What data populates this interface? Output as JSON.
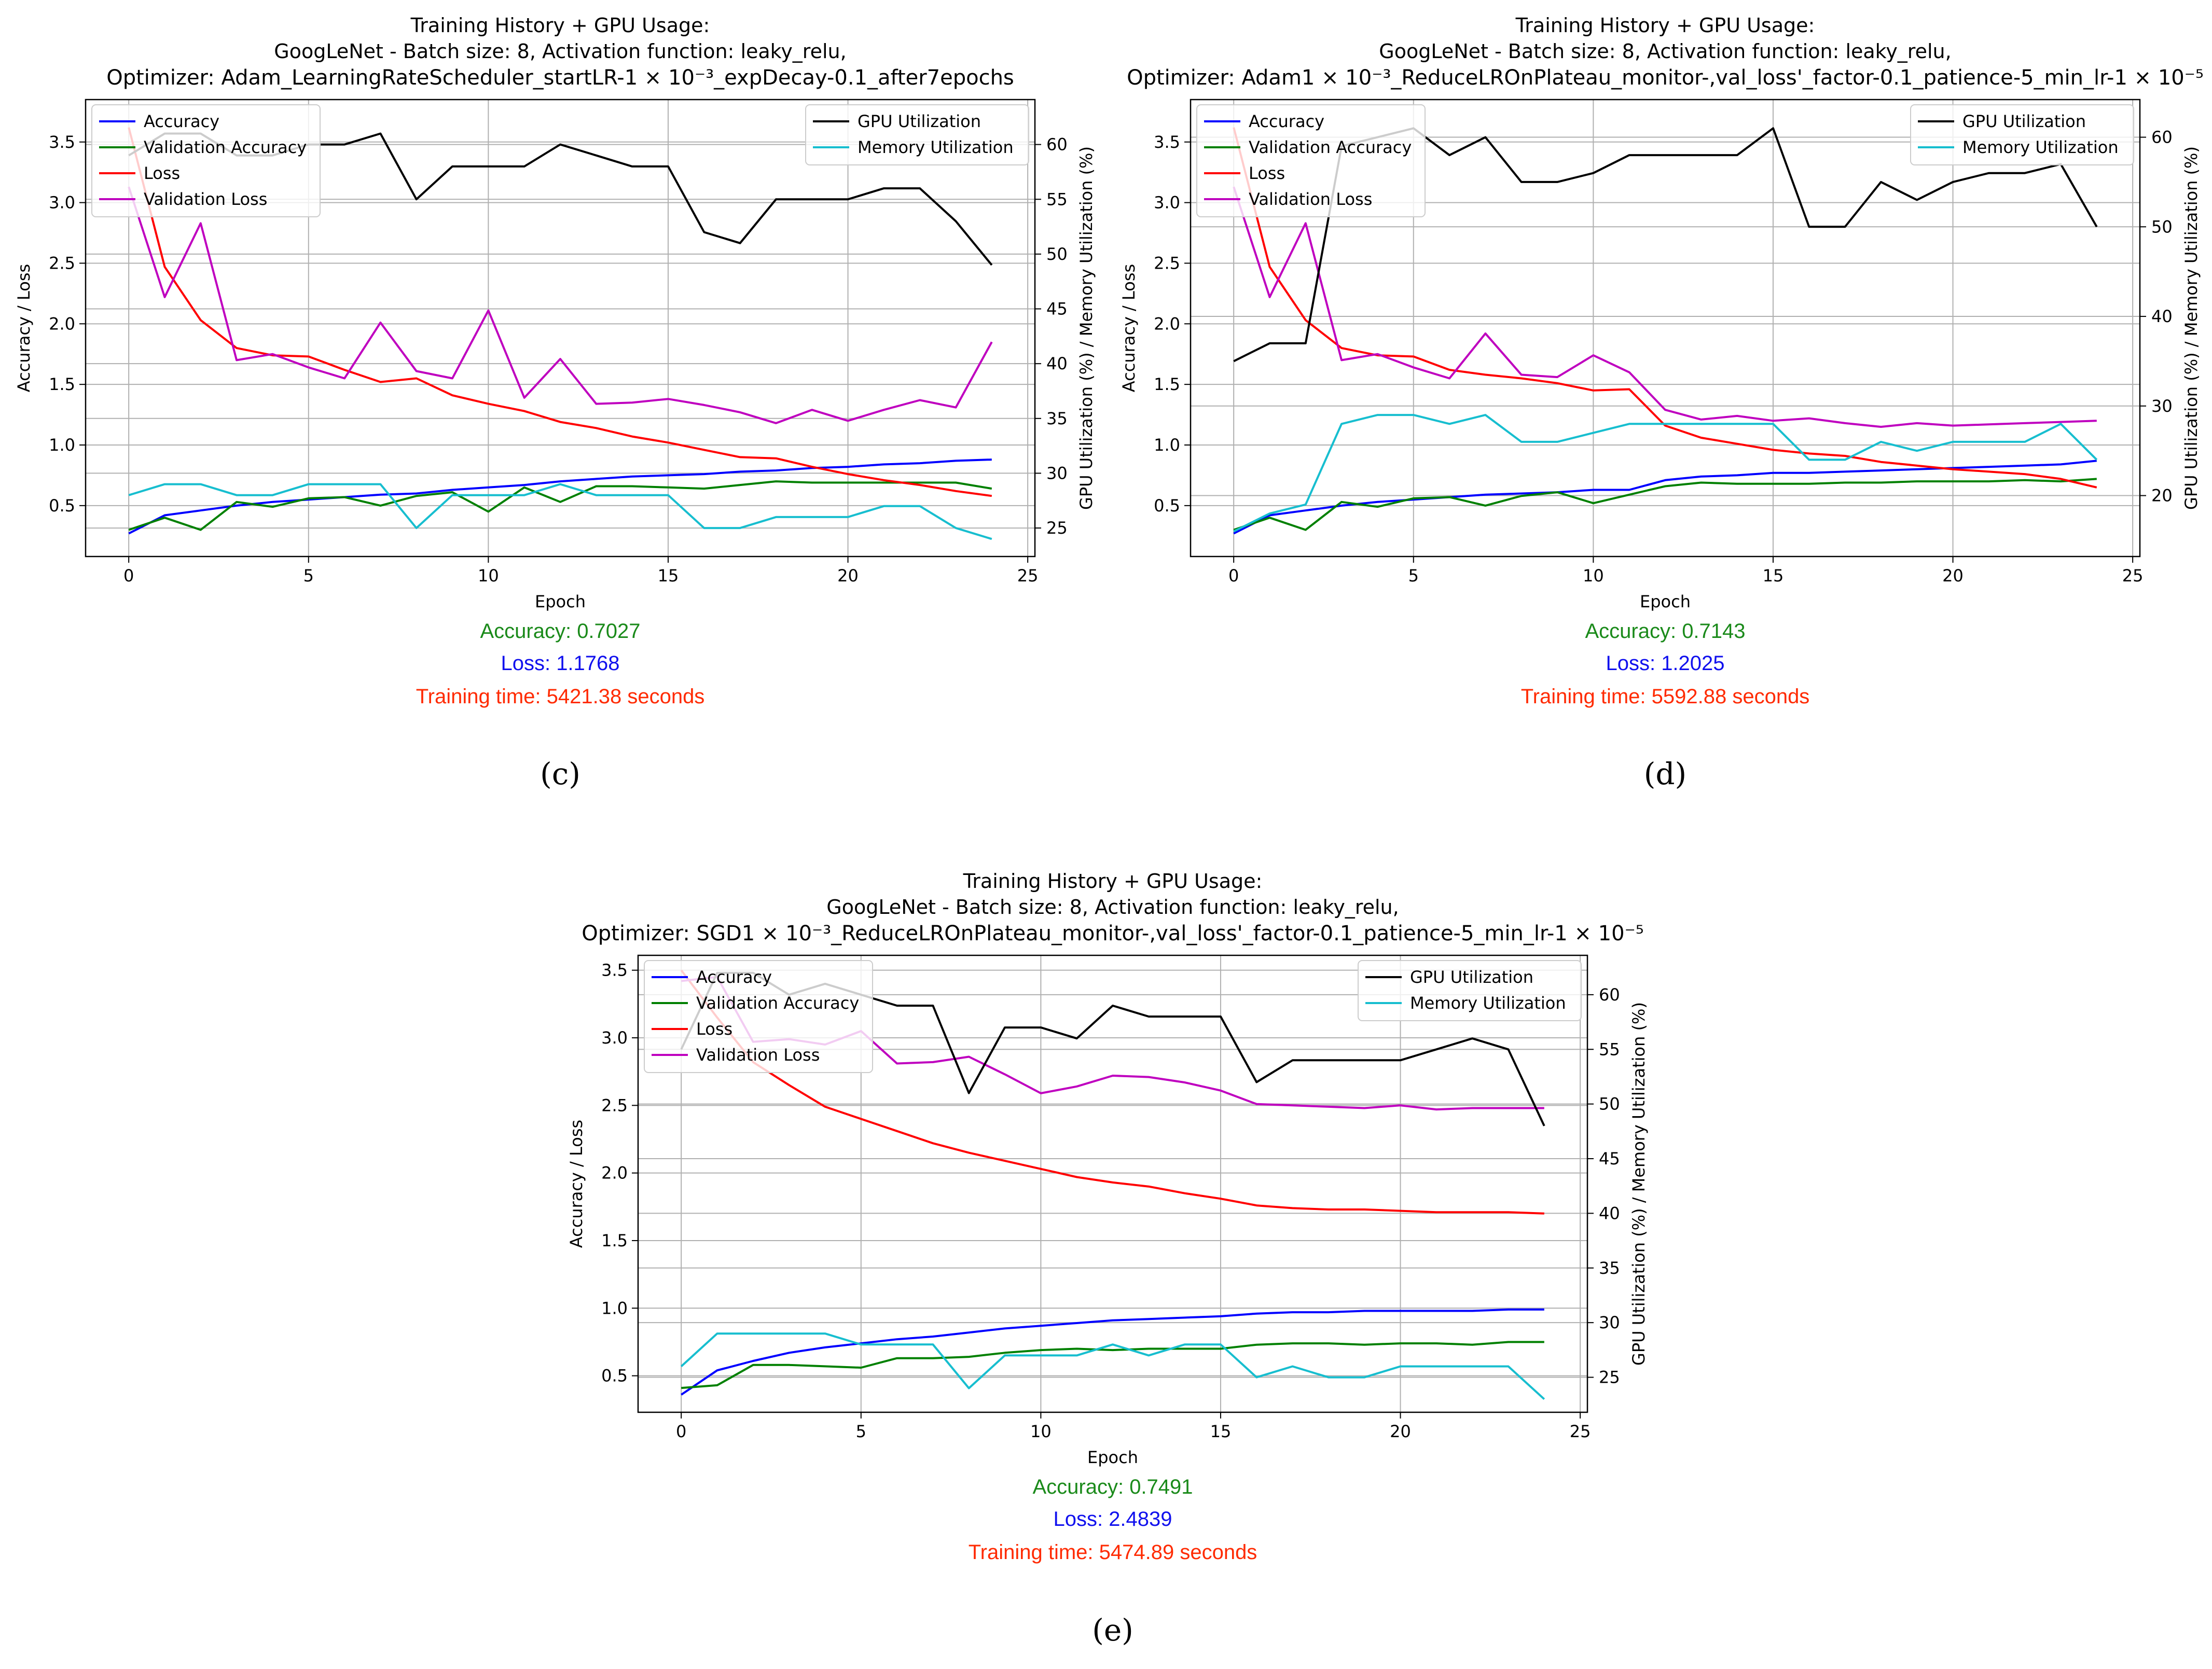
{
  "chart_data": [
    {
      "panel_label": "(c)",
      "type": "line",
      "title_lines": [
        "Training History + GPU Usage:",
        "GoogLeNet - Batch size: 8, Activation function: leaky_relu,"
      ],
      "optimizer_line": "Optimizer: Adam_LearningRateScheduler_startLR-1 × 10⁻³_expDecay-0.1_after7epochs",
      "xlabel": "Epoch",
      "ylabel": "Accuracy / Loss",
      "y2label": "GPU Utilization (%) / Memory Utilization (%)",
      "xlim": [
        -1.2,
        25.2
      ],
      "ylim": [
        0.08,
        3.85
      ],
      "y2lim": [
        22.4,
        64.1
      ],
      "xticks": [
        "0",
        "5",
        "10",
        "15",
        "20",
        "25"
      ],
      "yticks": [
        "0.5",
        "1.0",
        "1.5",
        "2.0",
        "2.5",
        "3.0",
        "3.5"
      ],
      "y2ticks": [
        "25",
        "30",
        "35",
        "40",
        "45",
        "50",
        "55",
        "60"
      ],
      "grid": true,
      "legend_left": "top-left",
      "legend_right": "top-right",
      "x": [
        0,
        1,
        2,
        3,
        4,
        5,
        6,
        7,
        8,
        9,
        10,
        11,
        12,
        13,
        14,
        15,
        16,
        17,
        18,
        19,
        20,
        21,
        22,
        23,
        24
      ],
      "series": [
        {
          "name": "Accuracy",
          "axis": "left",
          "color": "#0000ff",
          "values": [
            0.27,
            0.42,
            0.46,
            0.5,
            0.53,
            0.55,
            0.57,
            0.59,
            0.6,
            0.63,
            0.65,
            0.67,
            0.7,
            0.72,
            0.74,
            0.75,
            0.76,
            0.78,
            0.79,
            0.81,
            0.82,
            0.84,
            0.85,
            0.87,
            0.88
          ]
        },
        {
          "name": "Validation Accuracy",
          "axis": "left",
          "color": "#008000",
          "values": [
            0.3,
            0.4,
            0.3,
            0.53,
            0.49,
            0.56,
            0.57,
            0.5,
            0.58,
            0.61,
            0.45,
            0.65,
            0.53,
            0.66,
            0.66,
            0.65,
            0.64,
            0.67,
            0.7,
            0.69,
            0.69,
            0.69,
            0.69,
            0.69,
            0.64
          ]
        },
        {
          "name": "Loss",
          "axis": "left",
          "color": "#ff0000",
          "values": [
            3.62,
            2.47,
            2.03,
            1.8,
            1.74,
            1.73,
            1.62,
            1.52,
            1.55,
            1.41,
            1.34,
            1.28,
            1.19,
            1.14,
            1.07,
            1.02,
            0.96,
            0.9,
            0.89,
            0.82,
            0.76,
            0.71,
            0.67,
            0.62,
            0.58
          ]
        },
        {
          "name": "Validation Loss",
          "axis": "left",
          "color": "#bf00bf",
          "values": [
            3.13,
            2.22,
            2.83,
            1.7,
            1.75,
            1.64,
            1.55,
            2.01,
            1.61,
            1.55,
            2.11,
            1.39,
            1.71,
            1.34,
            1.35,
            1.38,
            1.33,
            1.27,
            1.18,
            1.29,
            1.2,
            1.29,
            1.37,
            1.31,
            1.85
          ]
        },
        {
          "name": "GPU Utilization",
          "axis": "right",
          "color": "#000000",
          "values": [
            59,
            61,
            61,
            59,
            59,
            60,
            60,
            61,
            55,
            58,
            58,
            58,
            60,
            59,
            58,
            58,
            52,
            51,
            55,
            55,
            55,
            56,
            56,
            53,
            49
          ]
        },
        {
          "name": "Memory Utilization",
          "axis": "right",
          "color": "#17becf",
          "values": [
            28,
            29,
            29,
            28,
            28,
            29,
            29,
            29,
            25,
            28,
            28,
            28,
            29,
            28,
            28,
            28,
            25,
            25,
            26,
            26,
            26,
            27,
            27,
            25,
            24
          ]
        }
      ],
      "metrics": {
        "accuracy": "Accuracy: 0.7027",
        "loss": "Loss: 1.1768",
        "time": "Training time: 5421.38 seconds"
      }
    },
    {
      "panel_label": "(d)",
      "type": "line",
      "title_lines": [
        "Training History + GPU Usage:",
        "GoogLeNet - Batch size: 8, Activation function: leaky_relu,"
      ],
      "optimizer_line": "Optimizer: Adam1 × 10⁻³_ReduceLROnPlateau_monitor-,val_loss'_factor-0.1_patience-5_min_lr-1 × 10⁻⁵",
      "xlabel": "Epoch",
      "ylabel": "Accuracy / Loss",
      "y2label": "GPU Utilization (%) / Memory Utilization (%)",
      "xlim": [
        -1.2,
        25.2
      ],
      "ylim": [
        0.08,
        3.85
      ],
      "y2lim": [
        13.2,
        64.2
      ],
      "xticks": [
        "0",
        "5",
        "10",
        "15",
        "20",
        "25"
      ],
      "yticks": [
        "0.5",
        "1.0",
        "1.5",
        "2.0",
        "2.5",
        "3.0",
        "3.5"
      ],
      "y2ticks": [
        "20",
        "30",
        "40",
        "50",
        "60"
      ],
      "grid": true,
      "legend_left": "top-left",
      "legend_right": "top-right",
      "x": [
        0,
        1,
        2,
        3,
        4,
        5,
        6,
        7,
        8,
        9,
        10,
        11,
        12,
        13,
        14,
        15,
        16,
        17,
        18,
        19,
        20,
        21,
        22,
        23,
        24
      ],
      "series": [
        {
          "name": "Accuracy",
          "axis": "left",
          "color": "#0000ff",
          "values": [
            0.27,
            0.42,
            0.46,
            0.5,
            0.53,
            0.55,
            0.57,
            0.59,
            0.6,
            0.61,
            0.63,
            0.63,
            0.71,
            0.74,
            0.75,
            0.77,
            0.77,
            0.78,
            0.79,
            0.8,
            0.81,
            0.82,
            0.83,
            0.84,
            0.87
          ]
        },
        {
          "name": "Validation Accuracy",
          "axis": "left",
          "color": "#008000",
          "values": [
            0.3,
            0.4,
            0.3,
            0.53,
            0.49,
            0.56,
            0.57,
            0.5,
            0.58,
            0.61,
            0.52,
            0.59,
            0.66,
            0.69,
            0.68,
            0.68,
            0.68,
            0.69,
            0.69,
            0.7,
            0.7,
            0.7,
            0.71,
            0.7,
            0.72
          ]
        },
        {
          "name": "Loss",
          "axis": "left",
          "color": "#ff0000",
          "values": [
            3.62,
            2.47,
            2.03,
            1.8,
            1.74,
            1.73,
            1.62,
            1.58,
            1.55,
            1.51,
            1.45,
            1.46,
            1.16,
            1.06,
            1.01,
            0.96,
            0.93,
            0.91,
            0.86,
            0.83,
            0.8,
            0.78,
            0.76,
            0.72,
            0.65
          ]
        },
        {
          "name": "Validation Loss",
          "axis": "left",
          "color": "#bf00bf",
          "values": [
            3.13,
            2.22,
            2.83,
            1.7,
            1.75,
            1.64,
            1.55,
            1.92,
            1.58,
            1.56,
            1.74,
            1.6,
            1.29,
            1.21,
            1.24,
            1.2,
            1.22,
            1.18,
            1.15,
            1.18,
            1.16,
            1.17,
            1.18,
            1.19,
            1.2
          ]
        },
        {
          "name": "GPU Utilization",
          "axis": "right",
          "color": "#000000",
          "values": [
            35,
            37,
            37,
            59,
            60,
            61,
            58,
            60,
            55,
            55,
            56,
            58,
            58,
            58,
            58,
            61,
            50,
            50,
            55,
            53,
            55,
            56,
            56,
            57,
            50
          ]
        },
        {
          "name": "Memory Utilization",
          "axis": "right",
          "color": "#17becf",
          "values": [
            16,
            18,
            19,
            28,
            29,
            29,
            28,
            29,
            26,
            26,
            27,
            28,
            28,
            28,
            28,
            28,
            24,
            24,
            26,
            25,
            26,
            26,
            26,
            28,
            24
          ]
        }
      ],
      "metrics": {
        "accuracy": "Accuracy: 0.7143",
        "loss": "Loss: 1.2025",
        "time": "Training time: 5592.88 seconds"
      }
    },
    {
      "panel_label": "(e)",
      "type": "line",
      "title_lines": [
        "Training History + GPU Usage:",
        "GoogLeNet - Batch size: 8, Activation function: leaky_relu,"
      ],
      "optimizer_line": "Optimizer: SGD1 × 10⁻³_ReduceLROnPlateau_monitor-,val_loss'_factor-0.1_patience-5_min_lr-1 × 10⁻⁵",
      "xlabel": "Epoch",
      "ylabel": "Accuracy / Loss",
      "y2label": "GPU Utilization (%) / Memory Utilization (%)",
      "xlim": [
        -1.2,
        25.2
      ],
      "ylim": [
        0.23,
        3.61
      ],
      "y2lim": [
        21.8,
        63.6
      ],
      "xticks": [
        "0",
        "5",
        "10",
        "15",
        "20",
        "25"
      ],
      "yticks": [
        "0.5",
        "1.0",
        "1.5",
        "2.0",
        "2.5",
        "3.0",
        "3.5"
      ],
      "y2ticks": [
        "25",
        "30",
        "35",
        "40",
        "45",
        "50",
        "55",
        "60"
      ],
      "grid": true,
      "legend_left": "top-left",
      "legend_right": "top-right",
      "x": [
        0,
        1,
        2,
        3,
        4,
        5,
        6,
        7,
        8,
        9,
        10,
        11,
        12,
        13,
        14,
        15,
        16,
        17,
        18,
        19,
        20,
        21,
        22,
        23,
        24
      ],
      "series": [
        {
          "name": "Accuracy",
          "axis": "left",
          "color": "#0000ff",
          "values": [
            0.36,
            0.54,
            0.61,
            0.67,
            0.71,
            0.74,
            0.77,
            0.79,
            0.82,
            0.85,
            0.87,
            0.89,
            0.91,
            0.92,
            0.93,
            0.94,
            0.96,
            0.97,
            0.97,
            0.98,
            0.98,
            0.98,
            0.98,
            0.99,
            0.99
          ]
        },
        {
          "name": "Validation Accuracy",
          "axis": "left",
          "color": "#008000",
          "values": [
            0.41,
            0.43,
            0.58,
            0.58,
            0.57,
            0.56,
            0.63,
            0.63,
            0.64,
            0.67,
            0.69,
            0.7,
            0.69,
            0.7,
            0.7,
            0.7,
            0.73,
            0.74,
            0.74,
            0.73,
            0.74,
            0.74,
            0.73,
            0.75,
            0.75
          ]
        },
        {
          "name": "Loss",
          "axis": "left",
          "color": "#ff0000",
          "values": [
            3.5,
            3.15,
            2.82,
            2.65,
            2.49,
            2.4,
            2.31,
            2.22,
            2.15,
            2.09,
            2.03,
            1.97,
            1.93,
            1.9,
            1.85,
            1.81,
            1.76,
            1.74,
            1.73,
            1.73,
            1.72,
            1.71,
            1.71,
            1.71,
            1.7
          ]
        },
        {
          "name": "Validation Loss",
          "axis": "left",
          "color": "#bf00bf",
          "values": [
            3.42,
            3.45,
            2.97,
            2.99,
            2.95,
            3.05,
            2.81,
            2.82,
            2.86,
            2.73,
            2.59,
            2.64,
            2.72,
            2.71,
            2.67,
            2.61,
            2.51,
            2.5,
            2.49,
            2.48,
            2.5,
            2.47,
            2.48,
            2.48,
            2.48
          ]
        },
        {
          "name": "GPU Utilization",
          "axis": "right",
          "color": "#000000",
          "values": [
            55,
            62,
            62,
            60,
            61,
            60,
            59,
            59,
            51,
            57,
            57,
            56,
            59,
            58,
            58,
            58,
            52,
            54,
            54,
            54,
            54,
            55,
            56,
            55,
            48
          ]
        },
        {
          "name": "Memory Utilization",
          "axis": "right",
          "color": "#17becf",
          "values": [
            26,
            29,
            29,
            29,
            29,
            28,
            28,
            28,
            24,
            27,
            27,
            27,
            28,
            27,
            28,
            28,
            25,
            26,
            25,
            25,
            26,
            26,
            26,
            26,
            23
          ]
        }
      ],
      "metrics": {
        "accuracy": "Accuracy: 0.7491",
        "loss": "Loss: 2.4839",
        "time": "Training time: 5474.89 seconds"
      }
    }
  ],
  "colors": {
    "accuracy_text": "#1a8a1a",
    "loss_text": "#1010ee",
    "time_text": "#ff2a00",
    "grid": "#b0b0b0"
  }
}
